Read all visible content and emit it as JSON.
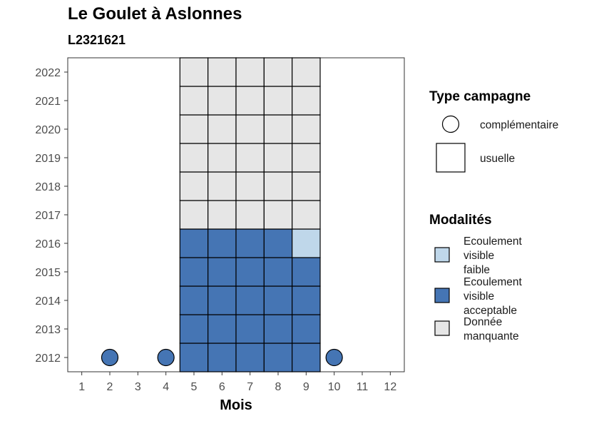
{
  "chart_data": {
    "type": "heatmap",
    "title": "Le Goulet à Aslonnes",
    "subtitle": "L2321621",
    "xlabel": "Mois",
    "ylabel": "",
    "x_ticks": [
      "1",
      "2",
      "3",
      "4",
      "5",
      "6",
      "7",
      "8",
      "9",
      "10",
      "11",
      "12"
    ],
    "y_ticks": [
      "2012",
      "2013",
      "2014",
      "2015",
      "2016",
      "2017",
      "2018",
      "2019",
      "2020",
      "2021",
      "2022"
    ],
    "xlim": [
      0.5,
      12.5
    ],
    "ylim": [
      2011.5,
      2022.5
    ],
    "colors": {
      "faible": "#bfd7ea",
      "acceptable": "#4575b4",
      "manquante": "#e6e6e6"
    },
    "cells": [
      {
        "month": 5,
        "year": 2012,
        "modalite": "acceptable",
        "campagne": "usuelle"
      },
      {
        "month": 6,
        "year": 2012,
        "modalite": "acceptable",
        "campagne": "usuelle"
      },
      {
        "month": 7,
        "year": 2012,
        "modalite": "acceptable",
        "campagne": "usuelle"
      },
      {
        "month": 8,
        "year": 2012,
        "modalite": "acceptable",
        "campagne": "usuelle"
      },
      {
        "month": 9,
        "year": 2012,
        "modalite": "acceptable",
        "campagne": "usuelle"
      },
      {
        "month": 5,
        "year": 2013,
        "modalite": "acceptable",
        "campagne": "usuelle"
      },
      {
        "month": 6,
        "year": 2013,
        "modalite": "acceptable",
        "campagne": "usuelle"
      },
      {
        "month": 7,
        "year": 2013,
        "modalite": "acceptable",
        "campagne": "usuelle"
      },
      {
        "month": 8,
        "year": 2013,
        "modalite": "acceptable",
        "campagne": "usuelle"
      },
      {
        "month": 9,
        "year": 2013,
        "modalite": "acceptable",
        "campagne": "usuelle"
      },
      {
        "month": 5,
        "year": 2014,
        "modalite": "acceptable",
        "campagne": "usuelle"
      },
      {
        "month": 6,
        "year": 2014,
        "modalite": "acceptable",
        "campagne": "usuelle"
      },
      {
        "month": 7,
        "year": 2014,
        "modalite": "acceptable",
        "campagne": "usuelle"
      },
      {
        "month": 8,
        "year": 2014,
        "modalite": "acceptable",
        "campagne": "usuelle"
      },
      {
        "month": 9,
        "year": 2014,
        "modalite": "acceptable",
        "campagne": "usuelle"
      },
      {
        "month": 5,
        "year": 2015,
        "modalite": "acceptable",
        "campagne": "usuelle"
      },
      {
        "month": 6,
        "year": 2015,
        "modalite": "acceptable",
        "campagne": "usuelle"
      },
      {
        "month": 7,
        "year": 2015,
        "modalite": "acceptable",
        "campagne": "usuelle"
      },
      {
        "month": 8,
        "year": 2015,
        "modalite": "acceptable",
        "campagne": "usuelle"
      },
      {
        "month": 9,
        "year": 2015,
        "modalite": "acceptable",
        "campagne": "usuelle"
      },
      {
        "month": 5,
        "year": 2016,
        "modalite": "acceptable",
        "campagne": "usuelle"
      },
      {
        "month": 6,
        "year": 2016,
        "modalite": "acceptable",
        "campagne": "usuelle"
      },
      {
        "month": 7,
        "year": 2016,
        "modalite": "acceptable",
        "campagne": "usuelle"
      },
      {
        "month": 8,
        "year": 2016,
        "modalite": "acceptable",
        "campagne": "usuelle"
      },
      {
        "month": 9,
        "year": 2016,
        "modalite": "faible",
        "campagne": "usuelle"
      },
      {
        "month": 5,
        "year": 2017,
        "modalite": "manquante",
        "campagne": "usuelle"
      },
      {
        "month": 6,
        "year": 2017,
        "modalite": "manquante",
        "campagne": "usuelle"
      },
      {
        "month": 7,
        "year": 2017,
        "modalite": "manquante",
        "campagne": "usuelle"
      },
      {
        "month": 8,
        "year": 2017,
        "modalite": "manquante",
        "campagne": "usuelle"
      },
      {
        "month": 9,
        "year": 2017,
        "modalite": "manquante",
        "campagne": "usuelle"
      },
      {
        "month": 5,
        "year": 2018,
        "modalite": "manquante",
        "campagne": "usuelle"
      },
      {
        "month": 6,
        "year": 2018,
        "modalite": "manquante",
        "campagne": "usuelle"
      },
      {
        "month": 7,
        "year": 2018,
        "modalite": "manquante",
        "campagne": "usuelle"
      },
      {
        "month": 8,
        "year": 2018,
        "modalite": "manquante",
        "campagne": "usuelle"
      },
      {
        "month": 9,
        "year": 2018,
        "modalite": "manquante",
        "campagne": "usuelle"
      },
      {
        "month": 5,
        "year": 2019,
        "modalite": "manquante",
        "campagne": "usuelle"
      },
      {
        "month": 6,
        "year": 2019,
        "modalite": "manquante",
        "campagne": "usuelle"
      },
      {
        "month": 7,
        "year": 2019,
        "modalite": "manquante",
        "campagne": "usuelle"
      },
      {
        "month": 8,
        "year": 2019,
        "modalite": "manquante",
        "campagne": "usuelle"
      },
      {
        "month": 9,
        "year": 2019,
        "modalite": "manquante",
        "campagne": "usuelle"
      },
      {
        "month": 5,
        "year": 2020,
        "modalite": "manquante",
        "campagne": "usuelle"
      },
      {
        "month": 6,
        "year": 2020,
        "modalite": "manquante",
        "campagne": "usuelle"
      },
      {
        "month": 7,
        "year": 2020,
        "modalite": "manquante",
        "campagne": "usuelle"
      },
      {
        "month": 8,
        "year": 2020,
        "modalite": "manquante",
        "campagne": "usuelle"
      },
      {
        "month": 9,
        "year": 2020,
        "modalite": "manquante",
        "campagne": "usuelle"
      },
      {
        "month": 5,
        "year": 2021,
        "modalite": "manquante",
        "campagne": "usuelle"
      },
      {
        "month": 6,
        "year": 2021,
        "modalite": "manquante",
        "campagne": "usuelle"
      },
      {
        "month": 7,
        "year": 2021,
        "modalite": "manquante",
        "campagne": "usuelle"
      },
      {
        "month": 8,
        "year": 2021,
        "modalite": "manquante",
        "campagne": "usuelle"
      },
      {
        "month": 9,
        "year": 2021,
        "modalite": "manquante",
        "campagne": "usuelle"
      },
      {
        "month": 5,
        "year": 2022,
        "modalite": "manquante",
        "campagne": "usuelle"
      },
      {
        "month": 6,
        "year": 2022,
        "modalite": "manquante",
        "campagne": "usuelle"
      },
      {
        "month": 7,
        "year": 2022,
        "modalite": "manquante",
        "campagne": "usuelle"
      },
      {
        "month": 8,
        "year": 2022,
        "modalite": "manquante",
        "campagne": "usuelle"
      },
      {
        "month": 9,
        "year": 2022,
        "modalite": "manquante",
        "campagne": "usuelle"
      },
      {
        "month": 2,
        "year": 2012,
        "modalite": "acceptable",
        "campagne": "complementaire"
      },
      {
        "month": 4,
        "year": 2012,
        "modalite": "acceptable",
        "campagne": "complementaire"
      },
      {
        "month": 10,
        "year": 2012,
        "modalite": "acceptable",
        "campagne": "complementaire"
      }
    ],
    "legend_campagne": {
      "title": "Type campagne",
      "items": [
        {
          "label": "complémentaire",
          "shape": "circle"
        },
        {
          "label": "usuelle",
          "shape": "square"
        }
      ]
    },
    "legend_modalites": {
      "title": "Modalités",
      "items": [
        {
          "lines": [
            "Ecoulement",
            "visible",
            "faible"
          ],
          "key": "faible"
        },
        {
          "lines": [
            "Ecoulement",
            "visible",
            "acceptable"
          ],
          "key": "acceptable"
        },
        {
          "lines": [
            "Donnée",
            "manquante"
          ],
          "key": "manquante"
        }
      ]
    },
    "legend_placement": "right",
    "grid": false
  }
}
